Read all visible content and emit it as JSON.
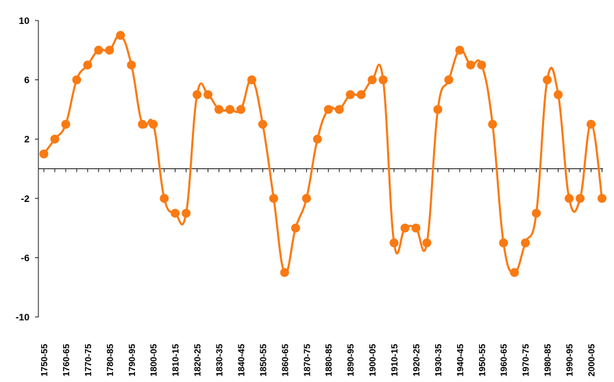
{
  "chart_data": {
    "type": "line",
    "title": "",
    "xlabel": "",
    "ylabel": "",
    "ylim": [
      -10,
      10
    ],
    "yticks": [
      10,
      6,
      2,
      -2,
      -6,
      -10
    ],
    "grid": false,
    "smooth": true,
    "series_color": "#F97A12",
    "x": [
      "1750-55",
      "1755-60",
      "1760-65",
      "1765-70",
      "1770-75",
      "1775-80",
      "1780-85",
      "1785-90",
      "1790-95",
      "1795-00",
      "1800-05",
      "1805-10",
      "1810-15",
      "1815-20",
      "1820-25",
      "1825-30",
      "1830-35",
      "1835-40",
      "1840-45",
      "1845-50",
      "1850-55",
      "1855-60",
      "1860-65",
      "1865-70",
      "1870-75",
      "1875-80",
      "1880-85",
      "1885-90",
      "1890-95",
      "1895-00",
      "1900-05",
      "1905-10",
      "1910-15",
      "1915-20",
      "1920-25",
      "1925-30",
      "1930-35",
      "1935-40",
      "1940-45",
      "1945-50",
      "1950-55",
      "1955-60",
      "1960-65",
      "1965-70",
      "1970-75",
      "1975-80",
      "1980-85",
      "1985-90",
      "1990-95",
      "1995-00",
      "2000-05",
      "2005-10"
    ],
    "x_tick_labels": [
      "1750-55",
      "1760-65",
      "1770-75",
      "1780-85",
      "1790-95",
      "1800-05",
      "1810-15",
      "1820-25",
      "1830-35",
      "1840-45",
      "1850-55",
      "1860-65",
      "1870-75",
      "1880-85",
      "1890-95",
      "1900-05",
      "1910-15",
      "1920-25",
      "1930-35",
      "1940-45",
      "1950-55",
      "1960-65",
      "1970-75",
      "1980-85",
      "1990-95",
      "2000-05"
    ],
    "series": [
      {
        "values": [
          1,
          2,
          3,
          6,
          7,
          8,
          8,
          9,
          7,
          3,
          3,
          -2,
          -3,
          -3,
          5,
          5,
          4,
          4,
          4,
          6,
          3,
          -2,
          -7,
          -4,
          -2,
          2,
          4,
          4,
          5,
          5,
          6,
          6,
          -5,
          -4,
          -4,
          -5,
          4,
          6,
          8,
          7,
          7,
          3,
          -5,
          -7,
          -5,
          -3,
          6,
          5,
          -2,
          -2,
          3,
          -2
        ]
      }
    ]
  }
}
